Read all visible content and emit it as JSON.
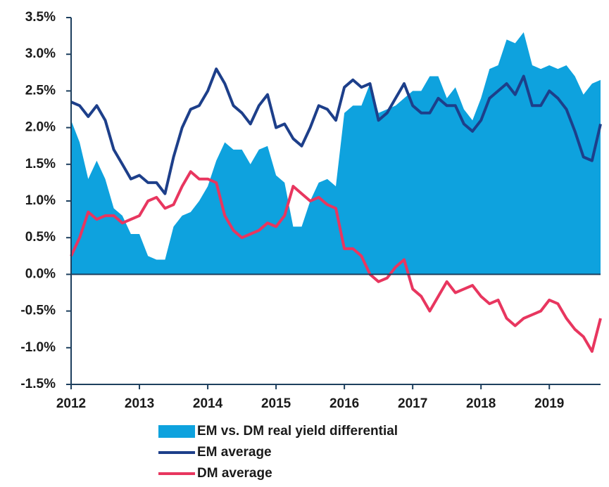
{
  "chart_data": {
    "type": "line",
    "x": [
      2012,
      2012.125,
      2012.25,
      2012.375,
      2012.5,
      2012.625,
      2012.75,
      2012.875,
      2013,
      2013.125,
      2013.25,
      2013.375,
      2013.5,
      2013.625,
      2013.75,
      2013.875,
      2014,
      2014.125,
      2014.25,
      2014.375,
      2014.5,
      2014.625,
      2014.75,
      2014.875,
      2015,
      2015.125,
      2015.25,
      2015.375,
      2015.5,
      2015.625,
      2015.75,
      2015.875,
      2016,
      2016.125,
      2016.25,
      2016.375,
      2016.5,
      2016.625,
      2016.75,
      2016.875,
      2017,
      2017.125,
      2017.25,
      2017.375,
      2017.5,
      2017.625,
      2017.75,
      2017.875,
      2018,
      2018.125,
      2018.25,
      2018.375,
      2018.5,
      2018.625,
      2018.75,
      2018.875,
      2019,
      2019.125,
      2019.25,
      2019.375,
      2019.5,
      2019.625,
      2019.75
    ],
    "series": [
      {
        "name": "EM vs. DM real yield differential",
        "type": "area",
        "color": "#0ea2de",
        "values": [
          2.1,
          1.8,
          1.3,
          1.55,
          1.3,
          0.9,
          0.8,
          0.55,
          0.55,
          0.25,
          0.2,
          0.2,
          0.65,
          0.8,
          0.85,
          1.0,
          1.2,
          1.55,
          1.8,
          1.7,
          1.7,
          1.5,
          1.7,
          1.75,
          1.35,
          1.25,
          0.65,
          0.65,
          1.0,
          1.25,
          1.3,
          1.2,
          2.2,
          2.3,
          2.3,
          2.6,
          2.2,
          2.25,
          2.3,
          2.4,
          2.5,
          2.5,
          2.7,
          2.7,
          2.4,
          2.55,
          2.25,
          2.1,
          2.4,
          2.8,
          2.85,
          3.2,
          3.15,
          3.3,
          2.85,
          2.8,
          2.85,
          2.8,
          2.85,
          2.7,
          2.45,
          2.6,
          2.65
        ]
      },
      {
        "name": "EM average",
        "type": "line",
        "color": "#1d3f8a",
        "values": [
          2.35,
          2.3,
          2.15,
          2.3,
          2.1,
          1.7,
          1.5,
          1.3,
          1.35,
          1.25,
          1.25,
          1.1,
          1.6,
          2.0,
          2.25,
          2.3,
          2.5,
          2.8,
          2.6,
          2.3,
          2.2,
          2.05,
          2.3,
          2.45,
          2.0,
          2.05,
          1.85,
          1.75,
          2.0,
          2.3,
          2.25,
          2.1,
          2.55,
          2.65,
          2.55,
          2.6,
          2.1,
          2.2,
          2.4,
          2.6,
          2.3,
          2.2,
          2.2,
          2.4,
          2.3,
          2.3,
          2.05,
          1.95,
          2.1,
          2.4,
          2.5,
          2.6,
          2.45,
          2.7,
          2.3,
          2.3,
          2.5,
          2.4,
          2.25,
          1.95,
          1.6,
          1.55,
          2.05
        ]
      },
      {
        "name": "DM average",
        "type": "line",
        "color": "#e8365f",
        "values": [
          0.25,
          0.5,
          0.85,
          0.75,
          0.8,
          0.8,
          0.7,
          0.75,
          0.8,
          1.0,
          1.05,
          0.9,
          0.95,
          1.2,
          1.4,
          1.3,
          1.3,
          1.25,
          0.8,
          0.6,
          0.5,
          0.55,
          0.6,
          0.7,
          0.65,
          0.8,
          1.2,
          1.1,
          1.0,
          1.05,
          0.95,
          0.9,
          0.35,
          0.35,
          0.25,
          0.0,
          -0.1,
          -0.05,
          0.1,
          0.2,
          -0.2,
          -0.3,
          -0.5,
          -0.3,
          -0.1,
          -0.25,
          -0.2,
          -0.15,
          -0.3,
          -0.4,
          -0.35,
          -0.6,
          -0.7,
          -0.6,
          -0.55,
          -0.5,
          -0.35,
          -0.4,
          -0.6,
          -0.75,
          -0.85,
          -1.05,
          -0.6
        ]
      }
    ],
    "xlim": [
      2012,
      2019.75
    ],
    "xticks": [
      2012,
      2013,
      2014,
      2015,
      2016,
      2017,
      2018,
      2019
    ],
    "ylim": [
      -1.5,
      3.5
    ],
    "yticks": [
      {
        "value": -1.5,
        "label": "-1.5%"
      },
      {
        "value": -1.0,
        "label": "-1.0%"
      },
      {
        "value": -0.5,
        "label": "-0.5%"
      },
      {
        "value": 0,
        "label": "0.0%"
      },
      {
        "value": 0.5,
        "label": "0.5%"
      },
      {
        "value": 1.0,
        "label": "1.0%"
      },
      {
        "value": 1.5,
        "label": "1.5%"
      },
      {
        "value": 2.0,
        "label": "2.0%"
      },
      {
        "value": 2.5,
        "label": "2.5%"
      },
      {
        "value": 3.0,
        "label": "3.0%"
      },
      {
        "value": 3.5,
        "label": "3.5%"
      }
    ],
    "axis_color": "#1d3f5e"
  }
}
